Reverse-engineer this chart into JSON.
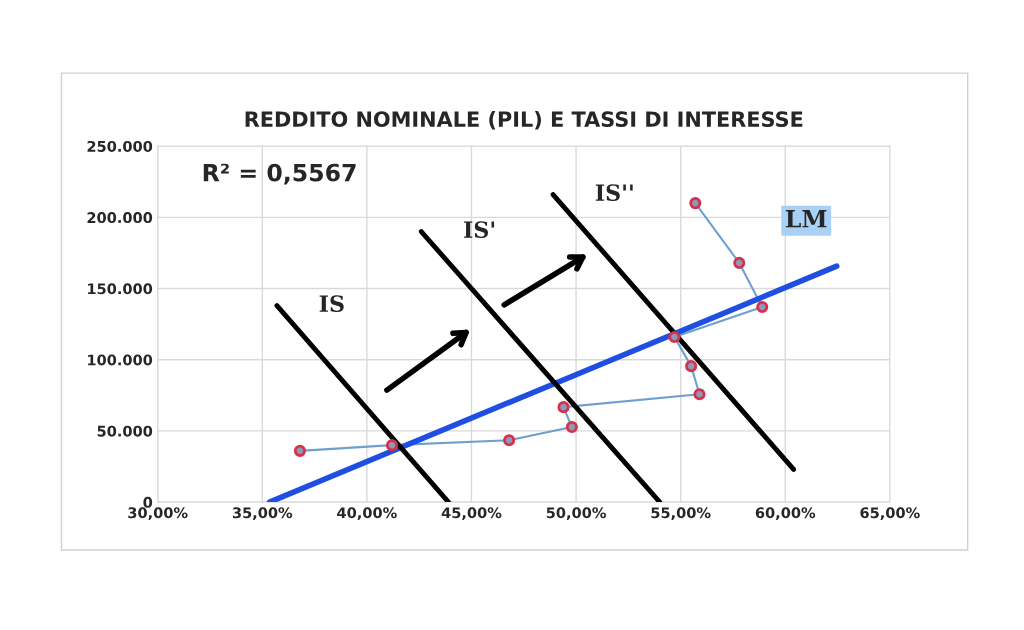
{
  "chart_data": {
    "type": "line",
    "title": "REDDITO NOMINALE (PIL) E TASSI DI INTERESSE",
    "annotations": [
      "R² = 0,5567"
    ],
    "xlim": [
      30,
      65
    ],
    "ylim": [
      0,
      250000
    ],
    "xticks": [
      {
        "value": 30,
        "label": "30,00%"
      },
      {
        "value": 35,
        "label": "35,00%"
      },
      {
        "value": 40,
        "label": "40,00%"
      },
      {
        "value": 45,
        "label": "45,00%"
      },
      {
        "value": 50,
        "label": "50,00%"
      },
      {
        "value": 55,
        "label": "55,00%"
      },
      {
        "value": 60,
        "label": "60,00%"
      },
      {
        "value": 65,
        "label": "65,00%"
      }
    ],
    "yticks": [
      0,
      {
        "value": 50000,
        "label": "50.000"
      },
      {
        "value": 100000,
        "label": "100.000"
      },
      {
        "value": 150000,
        "label": "150.000"
      },
      {
        "value": 200000,
        "label": "200.000"
      },
      {
        "value": 250000,
        "label": "250.000"
      }
    ],
    "grid": true,
    "legend": false,
    "series": [
      {
        "color": "#6f9fcf",
        "marker": "none",
        "x": [
          36.8,
          41.2,
          46.8,
          49.8,
          49.4,
          55.9,
          55.5,
          54.7,
          58.9,
          57.8,
          55.7
        ],
        "values": [
          36000,
          40000,
          43500,
          52700,
          66700,
          75800,
          95500,
          116000,
          137000,
          168000,
          210000
        ]
      },
      {
        "type": "scatter",
        "color": "#d9304a",
        "marker": "circle",
        "x": [
          36.8,
          41.2,
          46.8,
          49.8,
          49.4,
          55.9,
          55.5,
          54.7,
          58.9,
          57.8,
          55.7
        ],
        "values": [
          36000,
          40000,
          43500,
          52700,
          66700,
          75800,
          95500,
          116000,
          137000,
          168000,
          210000
        ]
      },
      {
        "name": "LM",
        "color": "#1f4fe0",
        "marker": "none",
        "x": [
          35.35,
          62.46
        ],
        "values": [
          0,
          165700
        ]
      },
      {
        "name": "IS",
        "color": "#000000",
        "marker": "none",
        "x": [
          35.7,
          43.9
        ],
        "values": [
          138000,
          0
        ]
      },
      {
        "name": "IS'",
        "color": "#000000",
        "marker": "none",
        "x": [
          42.6,
          54.0
        ],
        "values": [
          190000,
          0
        ]
      },
      {
        "name": "IS''",
        "color": "#000000",
        "marker": "none",
        "x": [
          48.9,
          60.4
        ],
        "values": [
          216000,
          23000
        ]
      }
    ]
  }
}
